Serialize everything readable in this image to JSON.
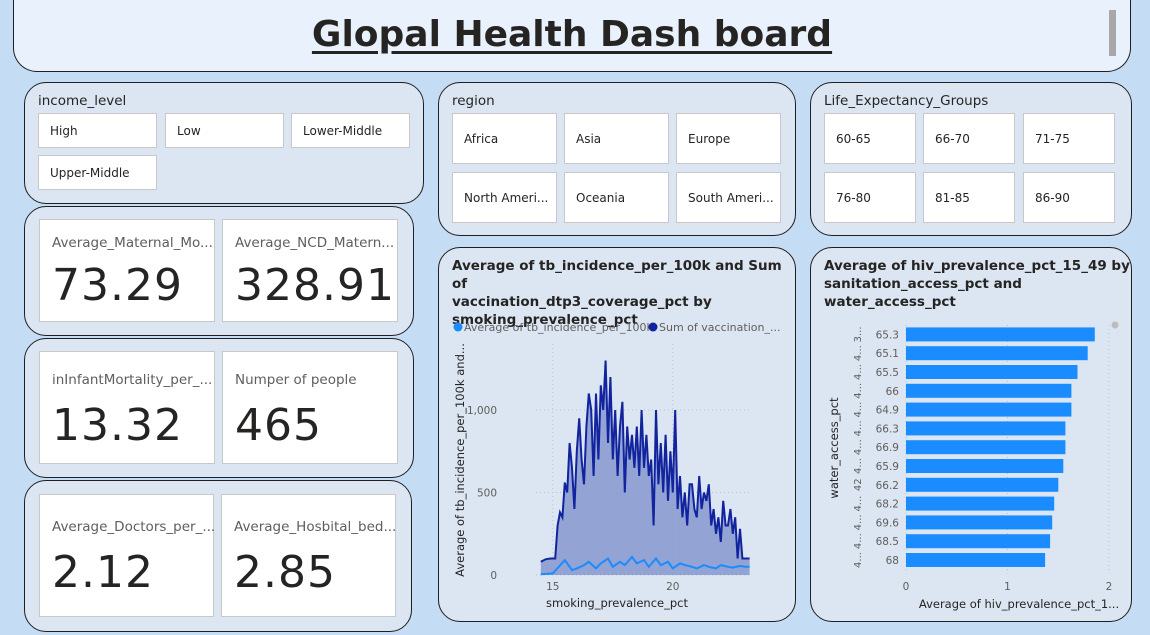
{
  "header": {
    "title": "Glopal Health Dash board"
  },
  "slicers": {
    "income": {
      "title": "income_level",
      "options": [
        "High",
        "Low",
        "Lower-Middle",
        "Upper-Middle"
      ]
    },
    "region": {
      "title": "region",
      "options": [
        "Africa",
        "Asia",
        "Europe",
        "North Ameri...",
        "Oceania",
        "South Ameri..."
      ]
    },
    "life": {
      "title": "Life_Expectancy_Groups",
      "options": [
        "60-65",
        "66-70",
        "71-75",
        "76-80",
        "81-85",
        "86-90"
      ]
    }
  },
  "cards": {
    "maternal": {
      "label": "Average_Maternal_Mo...",
      "value": "73.29"
    },
    "ncd": {
      "label": "Average_NCD_Matern...",
      "value": "328.91"
    },
    "infant": {
      "label": "inInfantMortality_per_...",
      "value": "13.32"
    },
    "people": {
      "label": "Numper of people",
      "value": "465"
    },
    "doctors": {
      "label": "Average_Doctors_per_...",
      "value": "2.12"
    },
    "hospital": {
      "label": "Average_Hosbital_bed...",
      "value": "2.85"
    }
  },
  "colors": {
    "tb_series": "#1a8cff",
    "vacc_series": "#12239e",
    "vacc_fill": "#8596cf",
    "bar": "#1a8cff"
  },
  "chart_data": [
    {
      "type": "area",
      "title_lines": [
        "Average of tb_incidence_per_100k and Sum of",
        "vaccination_dtp3_coverage_pct by",
        "smoking_prevalence_pct"
      ],
      "legend": [
        "Average of tb_incidence_per_100k",
        "Sum of vaccination_..."
      ],
      "xlabel": "smoking_prevalence_pct",
      "ylabel": "Average of tb_incidence_per_100k and...",
      "xticks": [
        "15",
        "20"
      ],
      "yticks": [
        "0",
        "500",
        "1,000"
      ],
      "xlim": [
        14.3,
        23.3
      ],
      "ylim": [
        0,
        1400
      ],
      "series": [
        {
          "name": "Sum of vaccination_...",
          "x": [
            14.5,
            14.7,
            14.9,
            15.1,
            15.2,
            15.3,
            15.4,
            15.5,
            15.6,
            15.7,
            15.8,
            15.9,
            16.0,
            16.1,
            16.2,
            16.3,
            16.4,
            16.5,
            16.6,
            16.7,
            16.8,
            16.9,
            17.0,
            17.1,
            17.2,
            17.3,
            17.4,
            17.5,
            17.6,
            17.7,
            17.8,
            17.9,
            18.0,
            18.1,
            18.2,
            18.3,
            18.4,
            18.5,
            18.6,
            18.7,
            18.8,
            18.9,
            19.0,
            19.1,
            19.2,
            19.3,
            19.4,
            19.5,
            19.6,
            19.7,
            19.8,
            19.9,
            20.0,
            20.1,
            20.2,
            20.3,
            20.4,
            20.5,
            20.6,
            20.7,
            20.8,
            20.9,
            21.0,
            21.1,
            21.2,
            21.3,
            21.4,
            21.5,
            21.6,
            21.7,
            21.8,
            21.9,
            22.0,
            22.1,
            22.2,
            22.3,
            22.4,
            22.5,
            22.6,
            22.7,
            22.8,
            22.9,
            23.0,
            23.2
          ],
          "values": [
            80,
            95,
            100,
            100,
            300,
            380,
            350,
            560,
            500,
            800,
            650,
            400,
            750,
            950,
            700,
            550,
            900,
            1100,
            1000,
            600,
            1100,
            700,
            1150,
            1000,
            1300,
            800,
            1200,
            700,
            1000,
            600,
            900,
            1050,
            500,
            900,
            700,
            850,
            650,
            900,
            600,
            1000,
            650,
            850,
            600,
            700,
            300,
            1000,
            550,
            800,
            500,
            850,
            450,
            750,
            500,
            1000,
            400,
            600,
            350,
            500,
            300,
            550,
            550,
            400,
            350,
            600,
            400,
            500,
            450,
            550,
            300,
            400,
            250,
            350,
            200,
            450,
            300,
            300,
            400,
            250,
            350,
            100,
            280,
            100,
            100,
            100
          ]
        },
        {
          "name": "Average of tb_incidence_per_100k",
          "x": [
            14.5,
            15.0,
            15.5,
            15.8,
            16.0,
            16.3,
            16.5,
            16.8,
            17.0,
            17.3,
            17.5,
            17.8,
            18.0,
            18.3,
            18.5,
            18.8,
            19.0,
            19.3,
            19.5,
            19.8,
            20.0,
            20.3,
            20.5,
            20.8,
            21.0,
            21.3,
            21.5,
            21.8,
            22.0,
            22.3,
            22.5,
            22.8,
            23.0,
            23.2
          ],
          "values": [
            5,
            10,
            90,
            30,
            40,
            60,
            80,
            40,
            70,
            100,
            50,
            80,
            60,
            110,
            70,
            90,
            50,
            100,
            60,
            80,
            40,
            70,
            60,
            50,
            40,
            60,
            50,
            40,
            60,
            50,
            45,
            55,
            50,
            50
          ]
        }
      ]
    },
    {
      "type": "bar",
      "title_lines": [
        "Average of hiv_prevalence_pct_15_49 by",
        "sanitation_access_pct and",
        "water_access_pct"
      ],
      "xlabel": "Average of hiv_prevalence_pct_1...",
      "ylabel": "water_access_pct",
      "xticks": [
        "0",
        "1",
        "2"
      ],
      "xlim": [
        0,
        2
      ],
      "outer_labels": [
        "3...",
        "4...",
        "4...",
        "4...",
        "4...",
        "4...",
        "4...",
        "4...",
        "42",
        "4...",
        "4...",
        "4...",
        "4..."
      ],
      "categories": [
        "65.3",
        "65.1",
        "65.5",
        "66",
        "64.9",
        "66.3",
        "66.9",
        "65.9",
        "66.2",
        "68.2",
        "69.6",
        "68.5",
        "68"
      ],
      "values": [
        1.86,
        1.79,
        1.69,
        1.63,
        1.63,
        1.57,
        1.57,
        1.55,
        1.5,
        1.46,
        1.44,
        1.42,
        1.37
      ]
    }
  ]
}
